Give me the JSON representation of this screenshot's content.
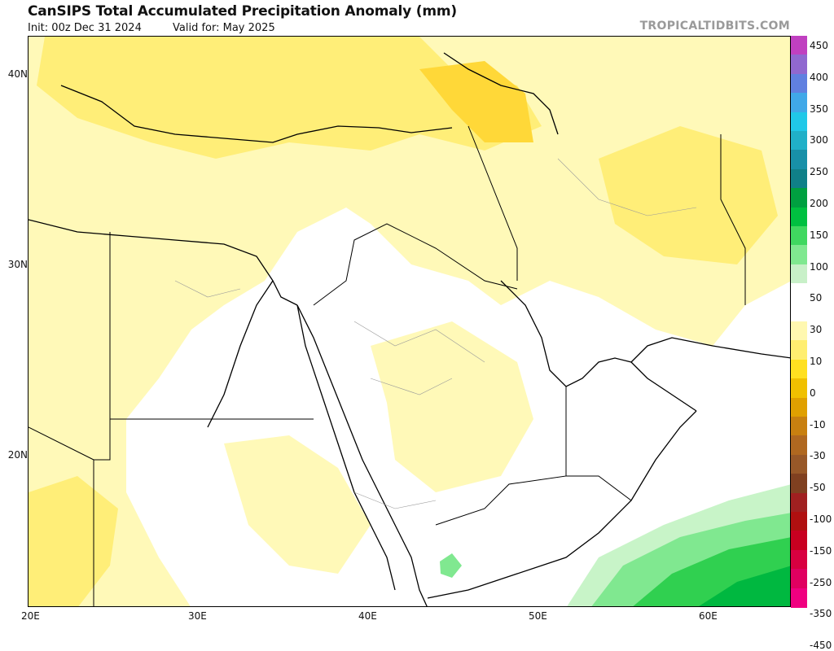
{
  "header": {
    "title": "CanSIPS Total Accumulated Precipitation Anomaly (mm)",
    "init": "Init: 00z Dec 31 2024",
    "valid": "Valid for: May 2025",
    "brand": "TROPICALTIDBITS.COM"
  },
  "axes": {
    "lat_labels": [
      "40N",
      "30N",
      "20N"
    ],
    "lon_labels": [
      "20E",
      "30E",
      "40E",
      "50E",
      "60E"
    ]
  },
  "colorbar": {
    "labels": [
      "450",
      "400",
      "350",
      "300",
      "250",
      "200",
      "150",
      "100",
      "50",
      "30",
      "10",
      "0",
      "-10",
      "-30",
      "-50",
      "-100",
      "-150",
      "-250",
      "-350",
      "-450"
    ],
    "colors": [
      "#c040c0",
      "#9068d0",
      "#6080e0",
      "#40a8e8",
      "#20c8e8",
      "#20b0c8",
      "#1890a8",
      "#108088",
      "#00a040",
      "#00c040",
      "#40d860",
      "#80e890",
      "#c8f0c8",
      "#ffffff",
      "#ffffff",
      "#fff8b0",
      "#ffee70",
      "#ffe020",
      "#f0c000",
      "#e0a000",
      "#c88010",
      "#b06820",
      "#985828",
      "#804020",
      "#a02020",
      "#b01010",
      "#c80020",
      "#d80040",
      "#e00060",
      "#f00080"
    ]
  }
}
